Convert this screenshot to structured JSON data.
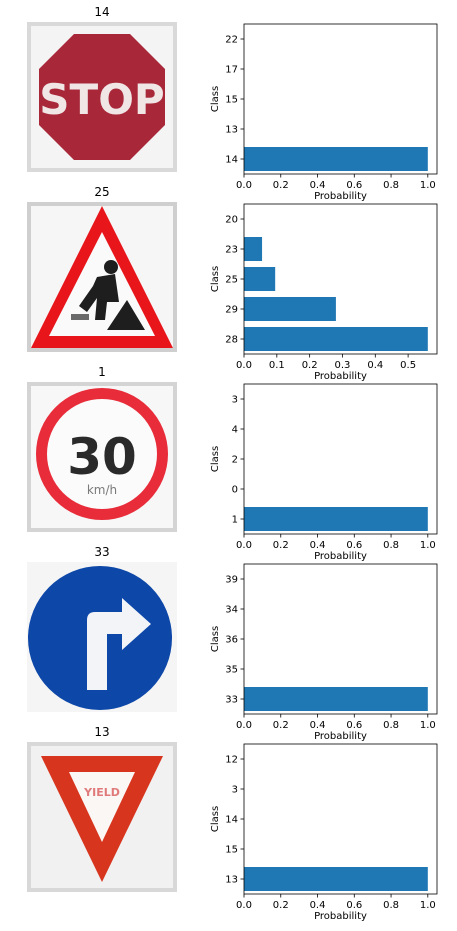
{
  "bar_color": "#1f77b4",
  "chart_data": [
    {
      "type": "bar",
      "orientation": "horizontal",
      "title": "14",
      "sign": "stop-sign",
      "categories": [
        "14",
        "13",
        "15",
        "17",
        "22"
      ],
      "values": [
        1.0,
        0.0,
        0.0,
        0.0,
        0.0
      ],
      "xlabel": "Probability",
      "ylabel": "Class",
      "xticks": [
        "0.0",
        "0.2",
        "0.4",
        "0.6",
        "0.8",
        "1.0"
      ],
      "xlim": [
        0,
        1.05
      ],
      "sign_text": "STOP"
    },
    {
      "type": "bar",
      "orientation": "horizontal",
      "title": "25",
      "sign": "road-work-sign",
      "categories": [
        "28",
        "29",
        "25",
        "23",
        "20"
      ],
      "values": [
        0.56,
        0.28,
        0.095,
        0.055,
        0.0
      ],
      "xlabel": "Probability",
      "ylabel": "Class",
      "xticks": [
        "0.0",
        "0.1",
        "0.2",
        "0.3",
        "0.4",
        "0.5"
      ],
      "xlim": [
        0,
        0.588
      ]
    },
    {
      "type": "bar",
      "orientation": "horizontal",
      "title": "1",
      "sign": "speed-limit-30-sign",
      "categories": [
        "1",
        "0",
        "2",
        "4",
        "3"
      ],
      "values": [
        1.0,
        0.0,
        0.0,
        0.0,
        0.0
      ],
      "xlabel": "Probability",
      "ylabel": "Class",
      "xticks": [
        "0.0",
        "0.2",
        "0.4",
        "0.6",
        "0.8",
        "1.0"
      ],
      "xlim": [
        0,
        1.05
      ],
      "sign_text": "30",
      "sign_subtext": "km/h"
    },
    {
      "type": "bar",
      "orientation": "horizontal",
      "title": "33",
      "sign": "turn-right-ahead-sign",
      "categories": [
        "33",
        "35",
        "36",
        "34",
        "39"
      ],
      "values": [
        1.0,
        0.0,
        0.0,
        0.0,
        0.0
      ],
      "xlabel": "Probability",
      "ylabel": "Class",
      "xticks": [
        "0.0",
        "0.2",
        "0.4",
        "0.6",
        "0.8",
        "1.0"
      ],
      "xlim": [
        0,
        1.05
      ]
    },
    {
      "type": "bar",
      "orientation": "horizontal",
      "title": "13",
      "sign": "yield-sign",
      "categories": [
        "13",
        "15",
        "14",
        "3",
        "12"
      ],
      "values": [
        1.0,
        0.0,
        0.0,
        0.0,
        0.0
      ],
      "xlabel": "Probability",
      "ylabel": "Class",
      "xticks": [
        "0.0",
        "0.2",
        "0.4",
        "0.6",
        "0.8",
        "1.0"
      ],
      "xlim": [
        0,
        1.05
      ],
      "sign_text": "YIELD"
    }
  ]
}
